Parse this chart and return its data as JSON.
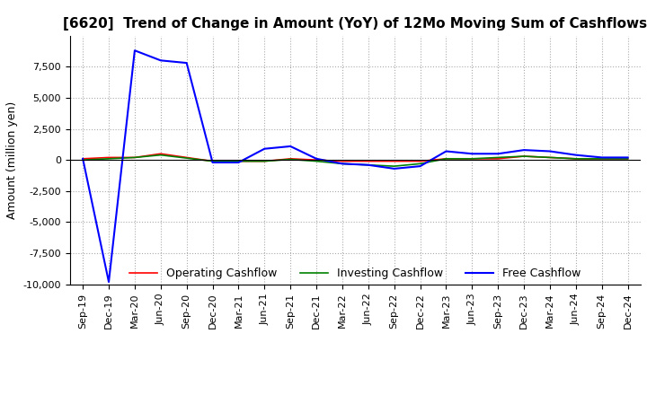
{
  "title": "[6620]  Trend of Change in Amount (YoY) of 12Mo Moving Sum of Cashflows",
  "ylabel": "Amount (million yen)",
  "ylim": [
    -10000,
    10000
  ],
  "yticks": [
    -10000,
    -7500,
    -5000,
    -2500,
    0,
    2500,
    5000,
    7500
  ],
  "legend_labels": [
    "Operating Cashflow",
    "Investing Cashflow",
    "Free Cashflow"
  ],
  "legend_colors": [
    "#ff0000",
    "#008000",
    "#0000ff"
  ],
  "x_labels": [
    "Sep-19",
    "Dec-19",
    "Mar-20",
    "Jun-20",
    "Sep-20",
    "Dec-20",
    "Mar-21",
    "Jun-21",
    "Sep-21",
    "Dec-21",
    "Mar-22",
    "Jun-22",
    "Sep-22",
    "Dec-22",
    "Mar-23",
    "Jun-23",
    "Sep-23",
    "Dec-23",
    "Mar-24",
    "Jun-24",
    "Sep-24",
    "Dec-24"
  ],
  "operating": [
    100,
    200,
    200,
    500,
    200,
    -100,
    -100,
    -100,
    100,
    0,
    -100,
    -100,
    -100,
    -100,
    100,
    100,
    100,
    300,
    200,
    100,
    100,
    100
  ],
  "investing": [
    0,
    100,
    200,
    400,
    150,
    -100,
    -100,
    -100,
    50,
    -100,
    -300,
    -400,
    -500,
    -300,
    100,
    100,
    200,
    300,
    200,
    100,
    100,
    100
  ],
  "free": [
    100,
    -9800,
    8800,
    8000,
    7800,
    -200,
    -200,
    900,
    1100,
    100,
    -300,
    -400,
    -700,
    -500,
    700,
    500,
    500,
    800,
    700,
    400,
    200,
    200
  ],
  "background_color": "#ffffff",
  "grid_color": "#aaaaaa",
  "title_fontsize": 11,
  "tick_fontsize": 8,
  "label_fontsize": 9
}
